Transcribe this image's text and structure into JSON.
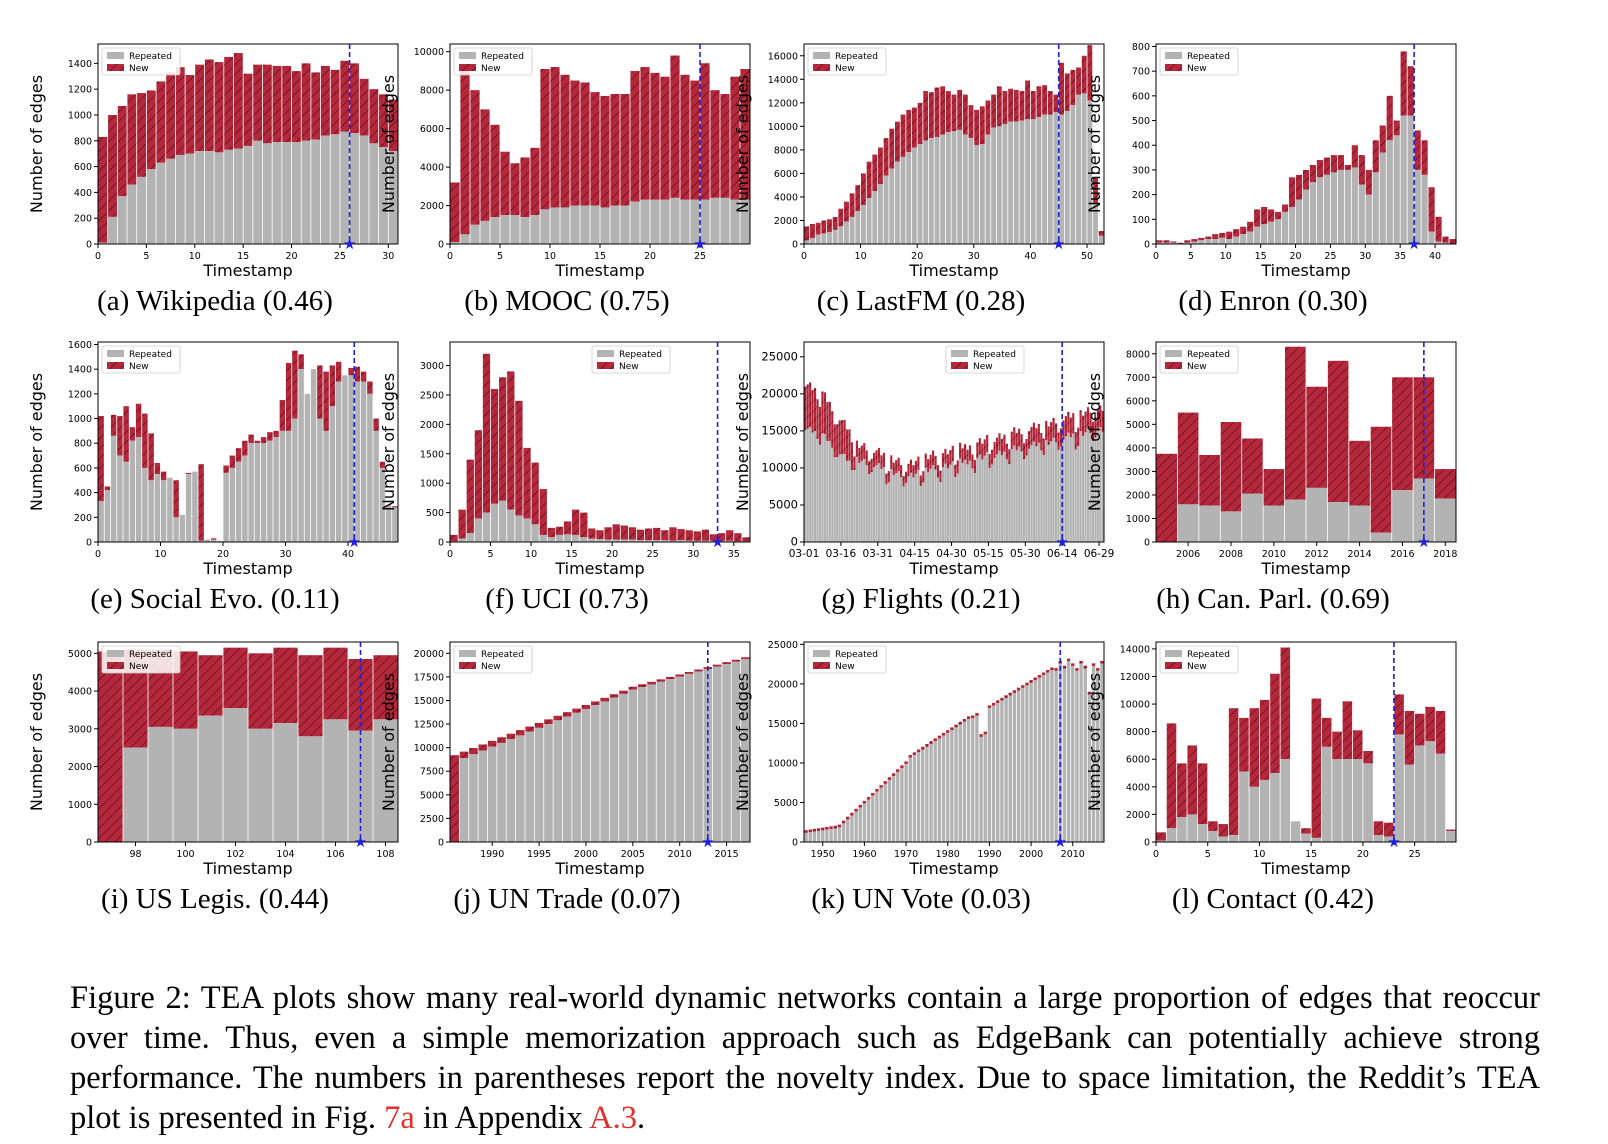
{
  "figure_number": "Figure 2:",
  "caption_text": "TEA plots show many real-world dynamic networks contain a large proportion of edges that reoccur over time. Thus, even a simple memorization approach such as EdgeBank can potentially achieve strong performance. The numbers in parentheses report the novelty index. Due to space limitation, the Reddit’s TEA plot is presented in Fig.",
  "caption_ref1": "7a",
  "caption_mid": "in Appendix",
  "caption_ref2": "A.3",
  "caption_end": ".",
  "colors": {
    "repeated": "#b3b3b3",
    "new": "#b5283b",
    "split_line": "#1f1fe0",
    "axis": "#000000"
  },
  "legend_labels": [
    "Repeated",
    "New"
  ],
  "chart_data": [
    {
      "type": "bar",
      "caption": "(a) Wikipedia (0.46)",
      "xlabel": "Timestamp",
      "ylabel": "Number of edges",
      "x_start": 0,
      "ylim": [
        0,
        1550
      ],
      "yticks": [
        0,
        200,
        400,
        600,
        800,
        1000,
        1200,
        1400
      ],
      "xticks": [
        {
          "v": 0,
          "l": "0"
        },
        {
          "v": 5,
          "l": "5"
        },
        {
          "v": 10,
          "l": "10"
        },
        {
          "v": 15,
          "l": "15"
        },
        {
          "v": 20,
          "l": "20"
        },
        {
          "v": 25,
          "l": "25"
        },
        {
          "v": 30,
          "l": "30"
        }
      ],
      "split": 26,
      "legend_pos": "top-left",
      "repeated": [
        10,
        210,
        370,
        460,
        520,
        580,
        630,
        660,
        690,
        700,
        720,
        720,
        710,
        730,
        740,
        760,
        800,
        780,
        790,
        790,
        790,
        800,
        810,
        840,
        850,
        870,
        860,
        840,
        780,
        750,
        720
      ],
      "total": [
        830,
        1000,
        1070,
        1160,
        1170,
        1190,
        1260,
        1330,
        1370,
        1310,
        1390,
        1430,
        1410,
        1450,
        1480,
        1320,
        1390,
        1390,
        1380,
        1380,
        1340,
        1400,
        1330,
        1380,
        1350,
        1420,
        1400,
        1280,
        1200,
        1160,
        1120
      ]
    },
    {
      "type": "bar",
      "caption": "(b) MOOC (0.75)",
      "xlabel": "Timestamp",
      "ylabel": "Number of edges",
      "x_start": 0,
      "ylim": [
        0,
        10400
      ],
      "yticks": [
        0,
        2000,
        4000,
        6000,
        8000,
        10000
      ],
      "xticks": [
        {
          "v": 0,
          "l": "0"
        },
        {
          "v": 5,
          "l": "5"
        },
        {
          "v": 10,
          "l": "10"
        },
        {
          "v": 15,
          "l": "15"
        },
        {
          "v": 20,
          "l": "20"
        },
        {
          "v": 25,
          "l": "25"
        }
      ],
      "split": 25,
      "legend_pos": "top-left",
      "repeated": [
        100,
        500,
        1000,
        1200,
        1400,
        1500,
        1500,
        1400,
        1500,
        1800,
        1900,
        1900,
        2000,
        2000,
        2000,
        1900,
        2000,
        2000,
        2200,
        2300,
        2300,
        2300,
        2400,
        2300,
        2300,
        2300,
        2400,
        2400,
        2300,
        2300
      ],
      "total": [
        3200,
        9000,
        8000,
        7000,
        6200,
        4800,
        4200,
        4500,
        5000,
        9100,
        9200,
        8800,
        8500,
        8400,
        7900,
        7700,
        7800,
        7800,
        9000,
        9200,
        8900,
        8700,
        9800,
        8800,
        8500,
        9400,
        8000,
        7800,
        8700,
        9100
      ]
    },
    {
      "type": "bar",
      "caption": "(c) LastFM (0.28)",
      "xlabel": "Timestamp",
      "ylabel": "Number of edges",
      "x_start": 0,
      "ylim": [
        0,
        17000
      ],
      "yticks": [
        0,
        2000,
        4000,
        6000,
        8000,
        10000,
        12000,
        14000,
        16000
      ],
      "xticks": [
        {
          "v": 0,
          "l": "0"
        },
        {
          "v": 10,
          "l": "10"
        },
        {
          "v": 20,
          "l": "20"
        },
        {
          "v": 30,
          "l": "30"
        },
        {
          "v": 40,
          "l": "40"
        },
        {
          "v": 50,
          "l": "50"
        }
      ],
      "split": 45,
      "legend_pos": "top-left",
      "repeated": [
        300,
        500,
        800,
        900,
        1000,
        1200,
        1500,
        1900,
        2300,
        2800,
        3300,
        3900,
        4500,
        5100,
        5800,
        6400,
        7000,
        7400,
        7800,
        8200,
        8500,
        8800,
        9000,
        9100,
        9300,
        9500,
        9600,
        9700,
        9300,
        9000,
        8400,
        8500,
        9300,
        9900,
        10000,
        10200,
        10400,
        10400,
        10500,
        10600,
        10600,
        10800,
        11000,
        11000,
        11200,
        11000,
        11300,
        11800,
        12700,
        12800,
        12200,
        3500,
        700
      ],
      "total": [
        1500,
        1700,
        1800,
        2000,
        2100,
        2300,
        3000,
        3600,
        4300,
        5000,
        6000,
        7000,
        7600,
        8200,
        9000,
        9800,
        10400,
        11000,
        11400,
        11600,
        12000,
        13000,
        12900,
        13300,
        13400,
        13000,
        12700,
        13100,
        12700,
        11800,
        11400,
        11700,
        12200,
        12700,
        13400,
        13000,
        13200,
        13100,
        13000,
        13900,
        13000,
        13400,
        13500,
        13000,
        12700,
        15400,
        14500,
        14800,
        15000,
        16000,
        16900,
        5700,
        1100
      ]
    },
    {
      "type": "bar",
      "caption": "(d) Enron (0.30)",
      "xlabel": "Timestamp",
      "ylabel": "Number of edges",
      "x_start": 0,
      "ylim": [
        0,
        810
      ],
      "yticks": [
        0,
        100,
        200,
        300,
        400,
        500,
        600,
        700,
        800
      ],
      "xticks": [
        {
          "v": 0,
          "l": "0"
        },
        {
          "v": 5,
          "l": "5"
        },
        {
          "v": 10,
          "l": "10"
        },
        {
          "v": 15,
          "l": "15"
        },
        {
          "v": 20,
          "l": "20"
        },
        {
          "v": 25,
          "l": "25"
        },
        {
          "v": 30,
          "l": "30"
        },
        {
          "v": 35,
          "l": "35"
        },
        {
          "v": 40,
          "l": "40"
        }
      ],
      "split": 37,
      "legend_pos": "top-left",
      "repeated": [
        5,
        5,
        5,
        2,
        5,
        10,
        15,
        20,
        20,
        25,
        20,
        30,
        40,
        50,
        70,
        80,
        90,
        100,
        130,
        150,
        180,
        220,
        250,
        270,
        280,
        290,
        300,
        300,
        310,
        240,
        200,
        290,
        370,
        420,
        440,
        520,
        520,
        300,
        280,
        50,
        10,
        5,
        2
      ],
      "total": [
        15,
        15,
        10,
        5,
        15,
        20,
        25,
        30,
        40,
        45,
        50,
        60,
        70,
        90,
        140,
        150,
        140,
        130,
        160,
        270,
        280,
        300,
        320,
        340,
        350,
        360,
        360,
        320,
        400,
        360,
        300,
        420,
        480,
        600,
        500,
        780,
        720,
        460,
        420,
        230,
        110,
        30,
        20
      ]
    },
    {
      "type": "bar",
      "caption": "(e) Social Evo. (0.11)",
      "xlabel": "Timestamp",
      "ylabel": "Number of edges",
      "x_start": 0,
      "ylim": [
        0,
        1620
      ],
      "yticks": [
        0,
        200,
        400,
        600,
        800,
        1000,
        1200,
        1400,
        1600
      ],
      "xticks": [
        {
          "v": 0,
          "l": "0"
        },
        {
          "v": 10,
          "l": "10"
        },
        {
          "v": 20,
          "l": "20"
        },
        {
          "v": 30,
          "l": "30"
        },
        {
          "v": 40,
          "l": "40"
        }
      ],
      "split": 41,
      "legend_pos": "top-left",
      "repeated": [
        330,
        420,
        860,
        700,
        650,
        820,
        850,
        600,
        500,
        550,
        500,
        520,
        200,
        500,
        550,
        580,
        10,
        20,
        20,
        10,
        560,
        600,
        650,
        700,
        800,
        800,
        800,
        820,
        850,
        900,
        900,
        1000,
        1400,
        1500,
        1500,
        1000,
        900,
        1100,
        1300,
        1400,
        1350,
        1300,
        1300,
        1200,
        900,
        600,
        300,
        280
      ],
      "total": [
        1020,
        450,
        1030,
        1020,
        1100,
        930,
        1120,
        1040,
        880,
        640,
        570,
        520,
        500,
        220,
        560,
        570,
        630,
        20,
        30,
        10,
        620,
        700,
        760,
        820,
        870,
        820,
        850,
        890,
        900,
        1150,
        1450,
        1550,
        1520,
        1200,
        1400,
        1430,
        1380,
        1430,
        1460,
        1350,
        1410,
        1420,
        1380,
        1300,
        1000,
        650,
        300,
        290
      ]
    },
    {
      "type": "bar",
      "caption": "(f) UCI (0.73)",
      "xlabel": "Timestamp",
      "ylabel": "Number of edges",
      "x_start": 0,
      "ylim": [
        0,
        3400
      ],
      "yticks": [
        0,
        500,
        1000,
        1500,
        2000,
        2500,
        3000
      ],
      "xticks": [
        {
          "v": 0,
          "l": "0"
        },
        {
          "v": 5,
          "l": "5"
        },
        {
          "v": 10,
          "l": "10"
        },
        {
          "v": 15,
          "l": "15"
        },
        {
          "v": 20,
          "l": "20"
        },
        {
          "v": 25,
          "l": "25"
        },
        {
          "v": 30,
          "l": "30"
        },
        {
          "v": 35,
          "l": "35"
        }
      ],
      "split": 33,
      "legend_pos": "top-center",
      "repeated": [
        10,
        60,
        150,
        400,
        500,
        650,
        700,
        550,
        450,
        400,
        300,
        120,
        80,
        120,
        130,
        120,
        80,
        60,
        50,
        40,
        40,
        40,
        40,
        30,
        30,
        30,
        30,
        20,
        30,
        25,
        20,
        20,
        20,
        20,
        20,
        10,
        10
      ],
      "total": [
        120,
        550,
        1400,
        1900,
        3200,
        2600,
        2800,
        2900,
        2400,
        1600,
        1350,
        900,
        240,
        260,
        350,
        550,
        500,
        230,
        200,
        250,
        300,
        280,
        250,
        210,
        230,
        240,
        200,
        250,
        220,
        200,
        180,
        210,
        130,
        150,
        200,
        150,
        80
      ]
    },
    {
      "type": "bar",
      "caption": "(g) Flights (0.21)",
      "xlabel": "Timestamp",
      "ylabel": "Number of edges",
      "x_start": 0,
      "ylim": [
        0,
        27000
      ],
      "yticks": [
        0,
        5000,
        10000,
        15000,
        20000,
        25000
      ],
      "ytick_labels": [
        "0",
        "5000",
        "10000",
        "15000",
        "20000",
        "25000"
      ],
      "xticks": [
        {
          "v": 0,
          "l": "03-01"
        },
        {
          "v": 15,
          "l": "03-16"
        },
        {
          "v": 30,
          "l": "03-31"
        },
        {
          "v": 45,
          "l": "04-15"
        },
        {
          "v": 60,
          "l": "04-30"
        },
        {
          "v": 75,
          "l": "05-15"
        },
        {
          "v": 90,
          "l": "05-30"
        },
        {
          "v": 105,
          "l": "06-14"
        },
        {
          "v": 120,
          "l": "06-29"
        }
      ],
      "split": 105,
      "legend_pos": "top-center",
      "series_fn": "flights"
    },
    {
      "type": "bar",
      "caption": "(h) Can. Parl. (0.69)",
      "xlabel": "Timestamp",
      "ylabel": "Number of edges",
      "x_start": 2005,
      "ylim": [
        0,
        8500
      ],
      "yticks": [
        0,
        1000,
        2000,
        3000,
        4000,
        5000,
        6000,
        7000,
        8000
      ],
      "xticks": [
        {
          "v": 2006,
          "l": "2006"
        },
        {
          "v": 2008,
          "l": "2008"
        },
        {
          "v": 2010,
          "l": "2010"
        },
        {
          "v": 2012,
          "l": "2012"
        },
        {
          "v": 2014,
          "l": "2014"
        },
        {
          "v": 2016,
          "l": "2016"
        },
        {
          "v": 2018,
          "l": "2018"
        }
      ],
      "split": 2017,
      "legend_pos": "top-left",
      "repeated": [
        0,
        1600,
        1550,
        1300,
        2050,
        1550,
        1800,
        2300,
        1700,
        1550,
        400,
        2200,
        2700,
        1850
      ],
      "total": [
        3750,
        5500,
        3700,
        5100,
        4400,
        3100,
        8300,
        6600,
        7700,
        4300,
        4900,
        7000,
        7000,
        3100
      ]
    },
    {
      "type": "bar",
      "caption": "(i) US Legis. (0.44)",
      "xlabel": "Timestamp",
      "ylabel": "Number of edges",
      "x_start": 97,
      "ylim": [
        0,
        5300
      ],
      "yticks": [
        0,
        1000,
        2000,
        3000,
        4000,
        5000
      ],
      "xticks": [
        {
          "v": 98,
          "l": "98"
        },
        {
          "v": 100,
          "l": "100"
        },
        {
          "v": 102,
          "l": "102"
        },
        {
          "v": 104,
          "l": "104"
        },
        {
          "v": 106,
          "l": "106"
        },
        {
          "v": 108,
          "l": "108"
        }
      ],
      "split": 107,
      "legend_pos": "top-left",
      "repeated": [
        0,
        2500,
        3050,
        3000,
        3350,
        3550,
        3000,
        3150,
        2800,
        3250,
        2950,
        3250
      ],
      "total": [
        5050,
        5100,
        5100,
        5050,
        4950,
        5150,
        5000,
        5150,
        4950,
        5150,
        4850,
        4950
      ]
    },
    {
      "type": "bar",
      "caption": "(j) UN Trade (0.07)",
      "xlabel": "Timestamp",
      "ylabel": "Number of edges",
      "x_start": 1986,
      "ylim": [
        0,
        21200
      ],
      "yticks": [
        0,
        2500,
        5000,
        7500,
        10000,
        12500,
        15000,
        17500,
        20000
      ],
      "xticks": [
        {
          "v": 1990,
          "l": "1990"
        },
        {
          "v": 1995,
          "l": "1995"
        },
        {
          "v": 2000,
          "l": "2000"
        },
        {
          "v": 2005,
          "l": "2005"
        },
        {
          "v": 2010,
          "l": "2010"
        },
        {
          "v": 2015,
          "l": "2015"
        }
      ],
      "split": 2013,
      "legend_pos": "top-left",
      "series_fn": "untrade"
    },
    {
      "type": "bar",
      "caption": "(k) UN Vote (0.03)",
      "xlabel": "Timestamp",
      "ylabel": "Number of edges",
      "x_start": 1946,
      "ylim": [
        0,
        25300
      ],
      "yticks": [
        0,
        5000,
        10000,
        15000,
        20000,
        25000
      ],
      "xticks": [
        {
          "v": 1950,
          "l": "1950"
        },
        {
          "v": 1960,
          "l": "1960"
        },
        {
          "v": 1970,
          "l": "1970"
        },
        {
          "v": 1980,
          "l": "1980"
        },
        {
          "v": 1990,
          "l": "1990"
        },
        {
          "v": 2000,
          "l": "2000"
        },
        {
          "v": 2010,
          "l": "2010"
        }
      ],
      "split": 2007,
      "legend_pos": "top-left",
      "series_fn": "unvote"
    },
    {
      "type": "bar",
      "caption": "(l) Contact (0.42)",
      "xlabel": "Timestamp",
      "ylabel": "Number of edges",
      "x_start": 0,
      "ylim": [
        0,
        14500
      ],
      "yticks": [
        0,
        2000,
        4000,
        6000,
        8000,
        10000,
        12000,
        14000
      ],
      "xticks": [
        {
          "v": 0,
          "l": "0"
        },
        {
          "v": 5,
          "l": "5"
        },
        {
          "v": 10,
          "l": "10"
        },
        {
          "v": 15,
          "l": "15"
        },
        {
          "v": 20,
          "l": "20"
        },
        {
          "v": 25,
          "l": "25"
        }
      ],
      "split": 23,
      "legend_pos": "top-left",
      "repeated": [
        100,
        1000,
        1800,
        2000,
        1300,
        800,
        400,
        500,
        5100,
        4000,
        4500,
        5000,
        6000,
        7100,
        600,
        300,
        6900,
        6000,
        6000,
        6000,
        5700,
        500,
        400,
        7800,
        5600,
        7000,
        7300,
        6400,
        800
      ],
      "total": [
        700,
        8600,
        5700,
        7000,
        5700,
        1500,
        1300,
        9700,
        9000,
        9700,
        10300,
        12200,
        14100,
        1500,
        1000,
        10400,
        9000,
        8000,
        10200,
        8100,
        6600,
        1500,
        1400,
        10700,
        9500,
        9300,
        9800,
        9500,
        900
      ]
    }
  ]
}
